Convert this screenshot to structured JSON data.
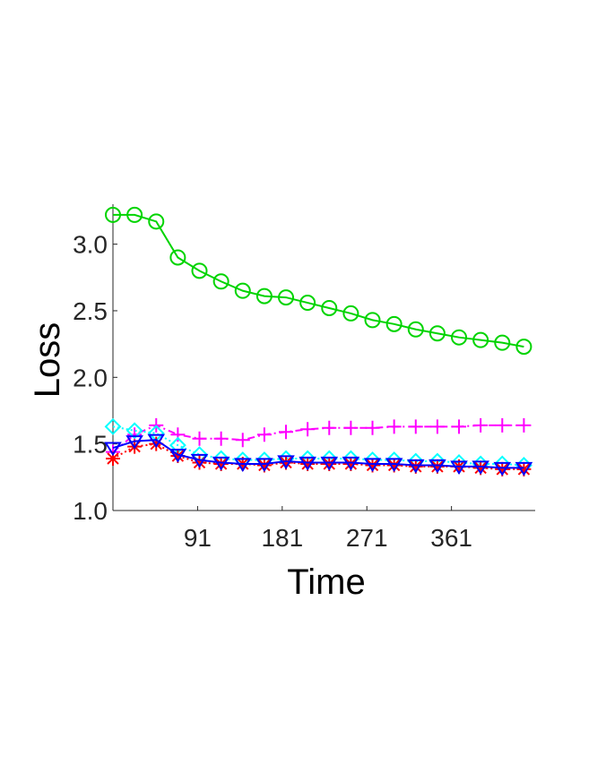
{
  "chart_data": {
    "type": "line",
    "xlabel": "Time",
    "ylabel": "Loss",
    "x_ticks": [
      "91",
      "181",
      "271",
      "361"
    ],
    "y_ticks": [
      "1.0",
      "1.5",
      "2.0",
      "2.5",
      "3.0"
    ],
    "xlim": [
      1,
      450
    ],
    "ylim": [
      1.0,
      3.3
    ],
    "grid": false,
    "legend": "none",
    "x": [
      1,
      24,
      47,
      70,
      93,
      116,
      139,
      162,
      185,
      208,
      231,
      254,
      277,
      300,
      323,
      346,
      369,
      392,
      415,
      438
    ],
    "series": [
      {
        "color": "#00d400",
        "marker": "circle",
        "line": "solid",
        "values": [
          3.22,
          3.22,
          3.17,
          2.9,
          2.8,
          2.72,
          2.65,
          2.61,
          2.6,
          2.56,
          2.52,
          2.48,
          2.43,
          2.4,
          2.36,
          2.33,
          2.3,
          2.28,
          2.26,
          2.23
        ]
      },
      {
        "color": "#ff00ff",
        "marker": "plus",
        "line": "dashdot",
        "values": [
          1.44,
          1.57,
          1.64,
          1.57,
          1.54,
          1.54,
          1.53,
          1.57,
          1.59,
          1.61,
          1.62,
          1.62,
          1.62,
          1.63,
          1.63,
          1.63,
          1.63,
          1.64,
          1.64,
          1.64
        ]
      },
      {
        "color": "#00ffff",
        "marker": "diamond",
        "line": "dotted",
        "values": [
          1.63,
          1.6,
          1.58,
          1.49,
          1.42,
          1.39,
          1.38,
          1.38,
          1.39,
          1.39,
          1.39,
          1.39,
          1.38,
          1.38,
          1.37,
          1.37,
          1.36,
          1.35,
          1.35,
          1.34
        ]
      },
      {
        "color": "#ff0000",
        "marker": "asterisk",
        "line": "dotted",
        "values": [
          1.39,
          1.48,
          1.5,
          1.41,
          1.36,
          1.35,
          1.35,
          1.34,
          1.36,
          1.35,
          1.35,
          1.35,
          1.34,
          1.34,
          1.33,
          1.33,
          1.33,
          1.32,
          1.31,
          1.31
        ]
      },
      {
        "color": "#0000ff",
        "marker": "triangle-down",
        "line": "solid",
        "values": [
          1.47,
          1.52,
          1.53,
          1.42,
          1.38,
          1.36,
          1.35,
          1.35,
          1.37,
          1.36,
          1.36,
          1.36,
          1.35,
          1.35,
          1.34,
          1.34,
          1.33,
          1.33,
          1.32,
          1.32
        ]
      }
    ]
  }
}
